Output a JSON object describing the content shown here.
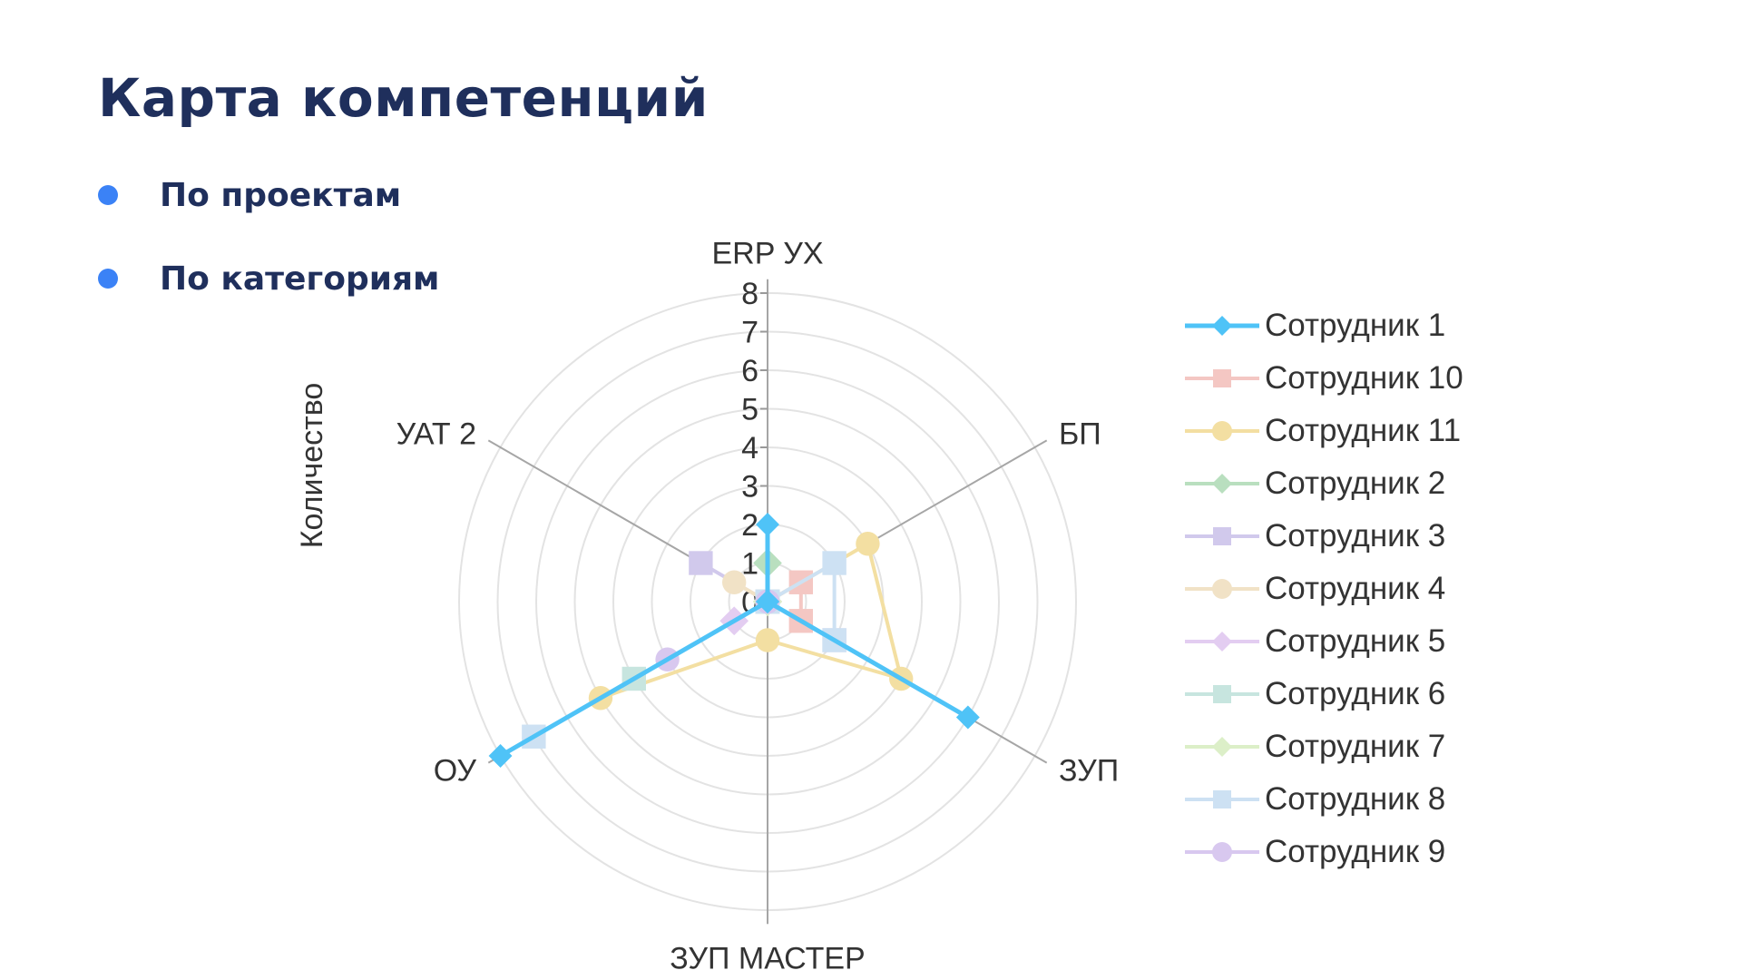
{
  "slide": {
    "title": "Карта компетенций",
    "bullets": [
      "По проектам",
      "По категориям"
    ],
    "bullet_color": "#3b82f6",
    "title_color": "#1f2f5c"
  },
  "chart_data": {
    "type": "radar",
    "axes": [
      "ERP УХ",
      "БП",
      "ЗУП",
      "ЗУП МАСТЕР",
      "ОУ",
      "УАТ 2"
    ],
    "y_axis_label": "Количество",
    "r_range": [
      0,
      8
    ],
    "r_ticks": [
      "0",
      "1",
      "2",
      "3",
      "4",
      "5",
      "6",
      "7",
      "8"
    ],
    "grid": true,
    "legend_position": "right",
    "series": [
      {
        "name": "Сотрудник 1",
        "color": "#4fc3f7",
        "marker": "diamond",
        "emphasis": true,
        "values": [
          2,
          0,
          6,
          0,
          8,
          0
        ]
      },
      {
        "name": "Сотрудник 10",
        "color": "#f4c7c3",
        "marker": "square",
        "emphasis": false,
        "values": [
          0,
          1,
          1,
          0,
          0,
          0
        ]
      },
      {
        "name": "Сотрудник 11",
        "color": "#f3dfa2",
        "marker": "circle",
        "emphasis": false,
        "values": [
          0,
          3,
          4,
          1,
          5,
          0
        ]
      },
      {
        "name": "Сотрудник 2",
        "color": "#b9dfbf",
        "marker": "diamond",
        "emphasis": false,
        "values": [
          1,
          0,
          0,
          0,
          0,
          0
        ]
      },
      {
        "name": "Сотрудник 3",
        "color": "#d1c9ec",
        "marker": "square",
        "emphasis": false,
        "values": [
          0,
          0,
          2,
          0,
          0,
          2
        ]
      },
      {
        "name": "Сотрудник 4",
        "color": "#f1e2c6",
        "marker": "circle",
        "emphasis": false,
        "values": [
          0,
          0,
          0,
          0,
          0,
          1
        ]
      },
      {
        "name": "Сотрудник 5",
        "color": "#e3cdf1",
        "marker": "diamond",
        "emphasis": false,
        "values": [
          0,
          0,
          0,
          0,
          1,
          0
        ]
      },
      {
        "name": "Сотрудник 6",
        "color": "#c7e5df",
        "marker": "square",
        "emphasis": false,
        "values": [
          0,
          0,
          0,
          0,
          4,
          0
        ]
      },
      {
        "name": "Сотрудник 7",
        "color": "#dcefc8",
        "marker": "diamond",
        "emphasis": false,
        "values": [
          0,
          0,
          0,
          0,
          0,
          0
        ]
      },
      {
        "name": "Сотрудник 8",
        "color": "#cde1f3",
        "marker": "square",
        "emphasis": false,
        "values": [
          0,
          2,
          2,
          0,
          7,
          0
        ]
      },
      {
        "name": "Сотрудник 9",
        "color": "#d8c8ef",
        "marker": "circle",
        "emphasis": false,
        "values": [
          0,
          0,
          0,
          0,
          3,
          0
        ]
      }
    ]
  }
}
